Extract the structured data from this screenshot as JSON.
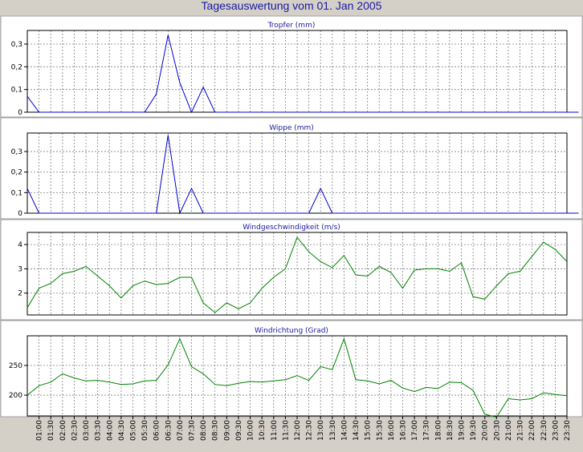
{
  "page": {
    "title": "Tagesauswertung vom 01. Jan 2005"
  },
  "x_ticks": [
    "01:00",
    "01:30",
    "02:00",
    "02:30",
    "03:00",
    "03:30",
    "04:00",
    "04:30",
    "05:00",
    "05:30",
    "06:00",
    "06:30",
    "07:00",
    "07:30",
    "08:00",
    "08:30",
    "09:00",
    "09:30",
    "10:00",
    "10:30",
    "11:00",
    "11:30",
    "12:00",
    "12:30",
    "13:00",
    "13:30",
    "14:00",
    "14:30",
    "15:00",
    "15:30",
    "16:00",
    "16:30",
    "17:00",
    "17:30",
    "18:00",
    "18:30",
    "19:00",
    "19:30",
    "20:00",
    "20:30",
    "21:00",
    "21:30",
    "22:00",
    "22:30",
    "23:00",
    "23:30"
  ],
  "colors": {
    "panel_bg": "#ffffff",
    "window_bg": "#d4d0c8",
    "title": "#1a1aa0",
    "rain_line": "#0000cc",
    "wind_line": "#008000",
    "grid": "#808080"
  },
  "chart_data": [
    {
      "type": "line",
      "title": "Tropfer (mm)",
      "x_start": "00:30",
      "x_step_minutes": 30,
      "ylim": [
        0,
        0.36
      ],
      "yticks": [
        0,
        0.1,
        0.2,
        0.3
      ],
      "ytick_labels": [
        "0",
        "0,1",
        "0,2",
        "0,3"
      ],
      "grid": true,
      "series": [
        {
          "values": [
            0.07,
            0,
            0,
            0,
            0,
            0,
            0,
            0,
            0,
            0,
            0,
            0.08,
            0.34,
            0.13,
            0,
            0.11,
            0,
            0,
            0,
            0,
            0,
            0,
            0,
            0,
            0,
            0,
            0,
            0,
            0,
            0,
            0,
            0,
            0,
            0,
            0,
            0,
            0,
            0,
            0,
            0,
            0,
            0,
            0,
            0,
            0,
            0,
            0,
            0
          ]
        }
      ]
    },
    {
      "type": "line",
      "title": "Wippe (mm)",
      "x_start": "00:30",
      "x_step_minutes": 30,
      "ylim": [
        0,
        0.39
      ],
      "yticks": [
        0,
        0.1,
        0.2,
        0.3
      ],
      "ytick_labels": [
        "0",
        "0,1",
        "0,2",
        "0,3"
      ],
      "grid": true,
      "series": [
        {
          "values": [
            0.12,
            0,
            0,
            0,
            0,
            0,
            0,
            0,
            0,
            0,
            0,
            0,
            0.38,
            0,
            0.12,
            0,
            0,
            0,
            0,
            0,
            0,
            0,
            0,
            0,
            0,
            0.12,
            0,
            0,
            0,
            0,
            0,
            0,
            0,
            0,
            0,
            0,
            0,
            0,
            0,
            0,
            0,
            0,
            0,
            0,
            0,
            0,
            0,
            0
          ]
        }
      ]
    },
    {
      "type": "line",
      "title": "Windgeschwindigkeit (m/s)",
      "x_start": "00:30",
      "x_step_minutes": 30,
      "ylim": [
        1.1,
        4.5
      ],
      "yticks": [
        2,
        3,
        4
      ],
      "ytick_labels": [
        "2",
        "3",
        "4"
      ],
      "grid": true,
      "series": [
        {
          "values": [
            1.4,
            2.2,
            2.4,
            2.8,
            2.9,
            3.1,
            2.7,
            2.3,
            1.8,
            2.3,
            2.5,
            2.35,
            2.4,
            2.65,
            2.65,
            1.6,
            1.2,
            1.6,
            1.35,
            1.6,
            2.2,
            2.65,
            3.0,
            4.3,
            3.7,
            3.3,
            3.05,
            3.55,
            2.75,
            2.7,
            3.1,
            2.85,
            2.2,
            2.95,
            3.0,
            3.0,
            2.9,
            3.25,
            1.85,
            1.75,
            2.3,
            2.8,
            2.9,
            3.5,
            4.1,
            3.8,
            3.3
          ]
        }
      ]
    },
    {
      "type": "line",
      "title": "Windrichtung (Grad)",
      "x_start": "00:30",
      "x_step_minutes": 30,
      "ylim": [
        165,
        300
      ],
      "yticks": [
        200,
        250
      ],
      "ytick_labels": [
        "200",
        "250"
      ],
      "grid": true,
      "series": [
        {
          "values": [
            200,
            216,
            222,
            236,
            229,
            224,
            225,
            222,
            218,
            219,
            224,
            225,
            251,
            295,
            248,
            236,
            218,
            216,
            220,
            223,
            222,
            224,
            226,
            233,
            225,
            248,
            243,
            295,
            226,
            224,
            219,
            225,
            212,
            206,
            213,
            211,
            222,
            221,
            208,
            168,
            163,
            194,
            192,
            194,
            204,
            201,
            199
          ]
        }
      ]
    }
  ]
}
